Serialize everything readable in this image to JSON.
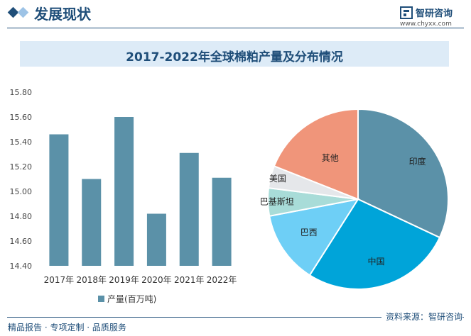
{
  "header": {
    "title": "发展现状"
  },
  "logo": {
    "name": "智研咨询",
    "url": "www.chyxx.com"
  },
  "footer": {
    "left": "精品报告 · 专项定制 · 品质服务",
    "source": "资料来源：智研咨询"
  },
  "colors": {
    "bar": "#5b91a8",
    "accent": "#1f4e79"
  },
  "chart_data": [
    {
      "type": "bar",
      "title": "2017-2022年全球棉粕产量及分布情况",
      "categories": [
        "2017年",
        "2018年",
        "2019年",
        "2020年",
        "2021年",
        "2022年"
      ],
      "series": [
        {
          "name": "产量(百万吨)",
          "values": [
            15.46,
            15.1,
            15.6,
            14.82,
            15.31,
            15.11
          ]
        }
      ],
      "ylim": [
        14.4,
        15.8
      ],
      "yticks": [
        "15.80",
        "15.60",
        "15.40",
        "15.20",
        "15.00",
        "14.80",
        "14.60",
        "14.40"
      ],
      "legend": "bottom",
      "grid": false
    },
    {
      "type": "pie",
      "slices": [
        {
          "label": "印度",
          "value": 32,
          "color": "#5b91a8"
        },
        {
          "label": "中国",
          "value": 27,
          "color": "#00a4d9"
        },
        {
          "label": "巴西",
          "value": 13,
          "color": "#6ecff6"
        },
        {
          "label": "巴基斯坦",
          "value": 5,
          "color": "#a8dcd8"
        },
        {
          "label": "美国",
          "value": 4,
          "color": "#e5e7ea"
        },
        {
          "label": "其他",
          "value": 19,
          "color": "#f0957a"
        }
      ]
    }
  ]
}
